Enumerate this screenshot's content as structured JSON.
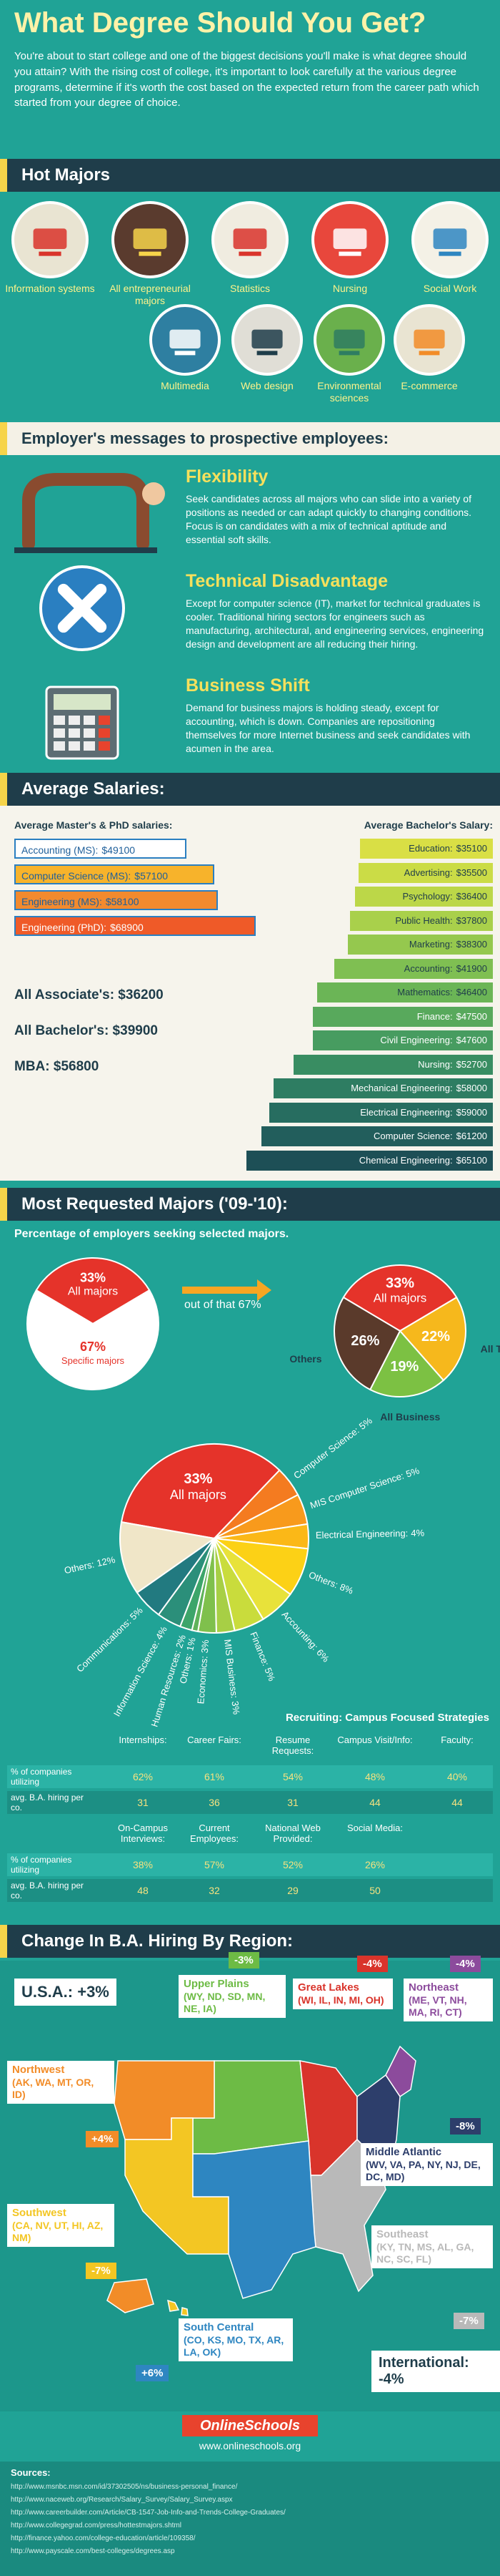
{
  "header": {
    "title": "What Degree Should You Get?",
    "intro": "You're about to start college and one of the biggest decisions you'll make is what degree should you attain? With the rising cost of college, it's important to look carefully at the various degree programs, determine if it's worth the cost based on the expected return from the career path which started from your degree of choice."
  },
  "hot_majors": {
    "heading": "Hot Majors",
    "items": [
      "Information systems",
      "All entrepreneurial majors",
      "Statistics",
      "Nursing",
      "Social Work",
      "Multimedia",
      "Web design",
      "Environmental sciences",
      "E-commerce"
    ]
  },
  "employers": {
    "heading": "Employer's messages to prospective employees:",
    "messages": [
      {
        "title": "Flexibility",
        "text": "Seek candidates across all majors who can slide into a variety of positions as needed or can adapt quickly to changing conditions. Focus is on candidates with a mix of technical aptitude and essential soft skills."
      },
      {
        "title": "Technical Disadvantage",
        "text": "Except for computer science (IT), market for technical graduates is cooler. Traditional hiring sectors for engineers such as manufacturing, architectural, and engineering services, engineering design and development are all reducing their hiring."
      },
      {
        "title": "Business Shift",
        "text": "Demand for business majors is holding steady, except for accounting, which is down. Companies are repositioning themselves for more Internet business and seek candidates with acumen in the area."
      }
    ]
  },
  "salaries": {
    "heading": "Average Salaries:",
    "graduate": {
      "title": "Average Master's & PhD salaries:",
      "categories": [
        "Accounting (MS):",
        "Computer Science (MS):",
        "Engineering (MS):",
        "Engineering (PhD):"
      ],
      "values": [
        49100,
        57100,
        58100,
        68900
      ],
      "value_labels": [
        "$49100",
        "$57100",
        "$58100",
        "$68900"
      ],
      "colors": [
        "#ffffff",
        "#f7b32b",
        "#f28a2e",
        "#ef5a28"
      ]
    },
    "overall": [
      "All Associate's: $36200",
      "All Bachelor's: $39900",
      "MBA: $56800"
    ],
    "bachelor": {
      "title": "Average Bachelor's Salary:",
      "categories": [
        "Education:",
        "Advertising:",
        "Psychology:",
        "Public Health:",
        "Marketing:",
        "Accounting:",
        "Mathematics:",
        "Finance:",
        "Civil Engineering:",
        "Nursing:",
        "Mechanical Engineering:",
        "Electrical Engineering:",
        "Computer Science:",
        "Chemical Engineering:"
      ],
      "values": [
        35100,
        35500,
        36400,
        37800,
        38300,
        41900,
        46400,
        47500,
        47600,
        52700,
        58000,
        59000,
        61200,
        65100
      ],
      "value_labels": [
        "$35100",
        "$35500",
        "$36400",
        "$37800",
        "$38300",
        "$41900",
        "$46400",
        "$47500",
        "$47600",
        "$52700",
        "$58000",
        "$59000",
        "$61200",
        "$65100"
      ],
      "colors": [
        "#d9df45",
        "#cbdc46",
        "#bcd748",
        "#a9d04b",
        "#95c84e",
        "#7fbf52",
        "#6bb556",
        "#58a95c",
        "#479c60",
        "#398d62",
        "#2e7d62",
        "#276d60",
        "#225e5c",
        "#1d4f56"
      ]
    }
  },
  "requested": {
    "heading": "Most Requested Majors ('09-'10):",
    "subtitle": "Percentage of employers seeking selected majors.",
    "pie1": {
      "categories": [
        "All majors",
        "Specific majors"
      ],
      "values": [
        33,
        67
      ],
      "value_labels": [
        "33%",
        "67%"
      ],
      "colors": [
        "#e5332a",
        "#ffffff"
      ]
    },
    "connector": "out of that 67%",
    "pie2": {
      "categories": [
        "All majors",
        "All Technical",
        "All Business",
        "Others"
      ],
      "values": [
        33,
        22,
        19,
        26
      ],
      "value_labels": [
        "33%",
        "22%",
        "19%",
        "26%"
      ],
      "colors": [
        "#e5332a",
        "#f6b81c",
        "#7cc143",
        "#5a3a2b"
      ]
    },
    "pie3": {
      "categories": [
        "All majors",
        "Computer Science:",
        "MIS Computer Science:",
        "Electrical Engineering:",
        "Others:",
        "Accounting:",
        "Finance:",
        "MIS Business:",
        "Economics:",
        "Others:",
        "Human Resources:",
        "Information Science:",
        "Communications:",
        "Others:"
      ],
      "values": [
        33,
        5,
        5,
        4,
        8,
        6,
        5,
        3,
        3,
        1,
        2,
        4,
        5,
        12
      ],
      "value_labels": [
        "33%",
        "5%",
        "5%",
        "4%",
        "8%",
        "6%",
        "5%",
        "3%",
        "3%",
        "1%",
        "2%",
        "4%",
        "5%",
        "12%"
      ],
      "colors": [
        "#e5332a",
        "#f47b20",
        "#f89a1c",
        "#fbb817",
        "#fcd116",
        "#e8e23a",
        "#c9dc3c",
        "#a7cf45",
        "#7fc04c",
        "#5fb35a",
        "#3da56a",
        "#2b8f7a",
        "#227a80",
        "#f0e6c8"
      ]
    }
  },
  "recruiting": {
    "title": "Recruiting: Campus Focused Strategies",
    "row_labels": [
      "% of companies utilizing",
      "avg. B.A. hiring per co."
    ],
    "groups": [
      {
        "headers": [
          "Internships:",
          "Career Fairs:",
          "Resume Requests:",
          "Campus Visit/Info:",
          "Faculty:"
        ],
        "rows": [
          [
            "62%",
            "61%",
            "54%",
            "48%",
            "40%"
          ],
          [
            "31",
            "36",
            "31",
            "44",
            "44"
          ]
        ]
      },
      {
        "headers": [
          "On-Campus Interviews:",
          "Current Employees:",
          "National Web Provided:",
          "Social Media:"
        ],
        "rows": [
          [
            "38%",
            "57%",
            "52%",
            "26%"
          ],
          [
            "48",
            "32",
            "29",
            "50"
          ]
        ]
      }
    ]
  },
  "hiring": {
    "heading": "Change In B.A. Hiring By Region:",
    "national": "U.S.A.: +3%",
    "international": "International: -4%",
    "regions": [
      {
        "name": "Upper Plains",
        "states": "(WY, ND, SD, MN, NE, IA)",
        "change": "-3%",
        "color": "#6dbb45"
      },
      {
        "name": "Great Lakes",
        "states": "(WI, IL, IN, MI, OH)",
        "change": "-4%",
        "color": "#d9342b"
      },
      {
        "name": "Northeast",
        "states": "(ME, VT, NH, MA, RI, CT)",
        "change": "-4%",
        "color": "#8c4b9c"
      },
      {
        "name": "Northwest",
        "states": "(AK, WA, MT, OR, ID)",
        "change": "+4%",
        "color": "#f28c28"
      },
      {
        "name": "Middle Atlantic",
        "states": "(WV, VA, PA, NY, NJ, DE, DC, MD)",
        "change": "-8%",
        "color": "#2d3e6b"
      },
      {
        "name": "Southwest",
        "states": "(CA, NV, UT, HI, AZ, NM)",
        "change": "-7%",
        "color": "#f3c623"
      },
      {
        "name": "Southeast",
        "states": "(KY, TN, MS, AL, GA, NC, SC, FL)",
        "change": "-7%",
        "color": "#b9b9b9"
      },
      {
        "name": "South Central",
        "states": "(CO, KS, MO, TX, AR, LA, OK)",
        "change": "+6%",
        "color": "#2e86c1"
      }
    ]
  },
  "footer": {
    "logo": "OnlineSchools",
    "url": "www.onlineschools.org",
    "sources_title": "Sources:",
    "sources": [
      "http://www.msnbc.msn.com/id/37302505/ns/business-personal_finance/",
      "http://www.naceweb.org/Research/Salary_Survey/Salary_Survey.aspx",
      "http://www.careerbuilder.com/Article/CB-1547-Job-Info-and-Trends-College-Graduates/",
      "http://www.collegegrad.com/press/hottestmajors.shtml",
      "http://finance.yahoo.com/college-education/article/109358/",
      "http://www.payscale.com/best-colleges/degrees.asp"
    ]
  }
}
